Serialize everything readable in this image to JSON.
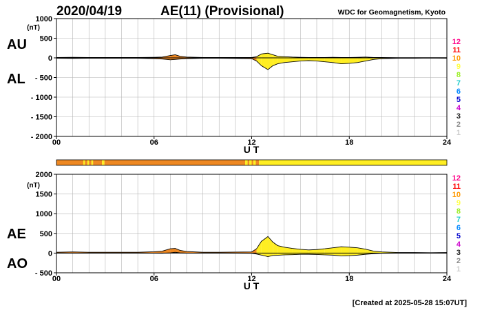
{
  "header": {
    "date": "2020/04/19",
    "title": "AE(11) (Provisional)",
    "source": "WDC for Geomagnetism, Kyoto"
  },
  "footer": {
    "created": "[Created at 2025-05-28 15:07UT]"
  },
  "station_count_legend": {
    "labels": [
      "12",
      "11",
      "10",
      "9",
      "8",
      "7",
      "6",
      "5",
      "4",
      "3",
      "2",
      "1"
    ],
    "colors": [
      "#ff0088",
      "#ff0000",
      "#ff9900",
      "#ffff44",
      "#99ee22",
      "#22cccc",
      "#0088ff",
      "#0000cc",
      "#cc00cc",
      "#222222",
      "#888888",
      "#cccccc"
    ]
  },
  "x_axis": {
    "unit": "U T",
    "ticks": [
      "00",
      "06",
      "12",
      "18",
      "24"
    ],
    "range_hours": [
      0,
      24
    ]
  },
  "fill_colors": {
    "orange": "#ee8822",
    "yellow": "#ffee22"
  },
  "station_bar": {
    "segments": [
      {
        "from": 0.0,
        "to": 1.65,
        "color": "orange"
      },
      {
        "from": 1.65,
        "to": 1.75,
        "color": "yellow"
      },
      {
        "from": 1.75,
        "to": 1.9,
        "color": "orange"
      },
      {
        "from": 1.9,
        "to": 2.0,
        "color": "yellow"
      },
      {
        "from": 2.0,
        "to": 2.15,
        "color": "orange"
      },
      {
        "from": 2.15,
        "to": 2.25,
        "color": "yellow"
      },
      {
        "from": 2.25,
        "to": 2.8,
        "color": "orange"
      },
      {
        "from": 2.8,
        "to": 2.95,
        "color": "yellow"
      },
      {
        "from": 2.95,
        "to": 11.6,
        "color": "orange"
      },
      {
        "from": 11.6,
        "to": 11.75,
        "color": "yellow"
      },
      {
        "from": 11.75,
        "to": 11.85,
        "color": "orange"
      },
      {
        "from": 11.85,
        "to": 12.0,
        "color": "yellow"
      },
      {
        "from": 12.0,
        "to": 12.1,
        "color": "orange"
      },
      {
        "from": 12.1,
        "to": 12.25,
        "color": "yellow"
      },
      {
        "from": 12.25,
        "to": 12.45,
        "color": "orange"
      },
      {
        "from": 12.45,
        "to": 24.0,
        "color": "yellow"
      }
    ]
  },
  "chart_data": [
    {
      "type": "area",
      "panel": "top",
      "left_labels": [
        "AU",
        "AL"
      ],
      "y_unit": "(nT)",
      "ylim": [
        -2000,
        1000
      ],
      "yticks": [
        1000,
        500,
        0,
        -500,
        -1000,
        -1500,
        -2000
      ],
      "ytick_labels": [
        "1000",
        "500",
        "0",
        "- 500",
        "- 1000",
        "- 1500",
        "- 2000"
      ],
      "grid": true,
      "x": [
        0,
        1,
        2,
        3,
        4,
        5,
        6,
        6.5,
        7,
        7.3,
        7.6,
        8,
        9,
        10,
        11,
        12,
        12.3,
        12.6,
        13,
        13.3,
        13.6,
        14,
        14.5,
        15,
        15.5,
        16,
        16.5,
        17,
        17.5,
        18,
        18.5,
        19,
        19.5,
        20,
        21,
        22,
        23,
        24
      ],
      "series": [
        {
          "values": [
            10,
            15,
            10,
            10,
            10,
            10,
            15,
            20,
            60,
            80,
            40,
            20,
            10,
            10,
            10,
            10,
            30,
            100,
            120,
            80,
            40,
            30,
            20,
            15,
            10,
            10,
            10,
            15,
            10,
            10,
            15,
            20,
            10,
            10,
            5,
            5,
            5,
            5
          ]
        },
        {
          "values": [
            -10,
            -15,
            -10,
            -10,
            -10,
            -10,
            -20,
            -30,
            -50,
            -40,
            -30,
            -20,
            -10,
            -10,
            -15,
            -20,
            -80,
            -200,
            -300,
            -200,
            -150,
            -120,
            -100,
            -80,
            -70,
            -80,
            -100,
            -120,
            -150,
            -140,
            -120,
            -80,
            -40,
            -20,
            -10,
            -10,
            -5,
            -10
          ]
        }
      ]
    },
    {
      "type": "area",
      "panel": "bottom",
      "left_labels": [
        "AE",
        "AO"
      ],
      "y_unit": "(nT)",
      "ylim": [
        -500,
        2000
      ],
      "yticks": [
        2000,
        1500,
        1000,
        500,
        0,
        -500
      ],
      "ytick_labels": [
        "2000",
        "1500",
        "1000",
        "500",
        "0",
        "- 500"
      ],
      "grid": true,
      "x": [
        0,
        1,
        2,
        3,
        4,
        5,
        6,
        6.5,
        7,
        7.3,
        7.6,
        8,
        9,
        10,
        11,
        12,
        12.3,
        12.6,
        13,
        13.3,
        13.6,
        14,
        14.5,
        15,
        15.5,
        16,
        16.5,
        17,
        17.5,
        18,
        18.5,
        19,
        19.5,
        20,
        21,
        22,
        23,
        24
      ],
      "series": [
        {
          "values": [
            20,
            30,
            20,
            20,
            20,
            20,
            35,
            50,
            110,
            120,
            70,
            40,
            20,
            20,
            25,
            30,
            110,
            300,
            420,
            280,
            190,
            150,
            120,
            95,
            80,
            90,
            110,
            135,
            160,
            150,
            135,
            100,
            50,
            30,
            15,
            15,
            10,
            15
          ]
        },
        {
          "values": [
            0,
            0,
            0,
            0,
            0,
            0,
            -2,
            -5,
            5,
            20,
            5,
            0,
            0,
            0,
            -2,
            -5,
            -25,
            -50,
            -90,
            -60,
            -55,
            -45,
            -40,
            -32,
            -30,
            -35,
            -45,
            -52,
            -70,
            -65,
            -52,
            -30,
            -15,
            -5,
            -2,
            -2,
            0,
            -2
          ]
        }
      ]
    }
  ]
}
